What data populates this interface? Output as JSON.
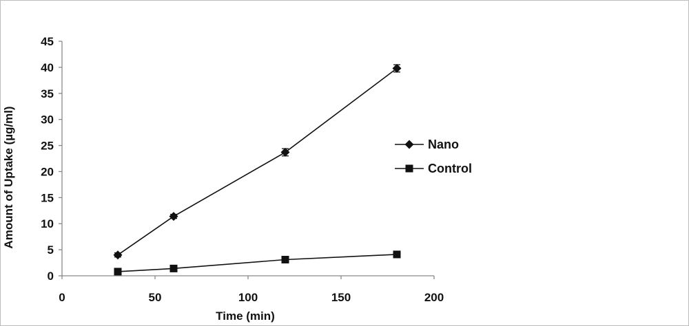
{
  "chart_data": {
    "type": "line",
    "title": "",
    "xlabel": "Time (min)",
    "ylabel": "Amount of Uptake (µg/ml)",
    "xlim": [
      0,
      200
    ],
    "ylim": [
      0,
      45
    ],
    "x_ticks": [
      "0",
      "50",
      "100",
      "150",
      "200"
    ],
    "y_ticks": [
      "0",
      "5",
      "10",
      "15",
      "20",
      "25",
      "30",
      "35",
      "40",
      "45"
    ],
    "grid": false,
    "legend_position": "right",
    "series": [
      {
        "name": "Nano",
        "marker": "diamond",
        "color": "#111111",
        "x": [
          30,
          60,
          120,
          180
        ],
        "y": [
          4.0,
          11.4,
          23.7,
          39.8
        ],
        "error": [
          0.4,
          0.4,
          0.7,
          0.7
        ]
      },
      {
        "name": "Control",
        "marker": "square",
        "color": "#111111",
        "x": [
          30,
          60,
          120,
          180
        ],
        "y": [
          0.8,
          1.4,
          3.1,
          4.1
        ],
        "error": [
          0.3,
          0.3,
          0.6,
          0.6
        ]
      }
    ]
  }
}
